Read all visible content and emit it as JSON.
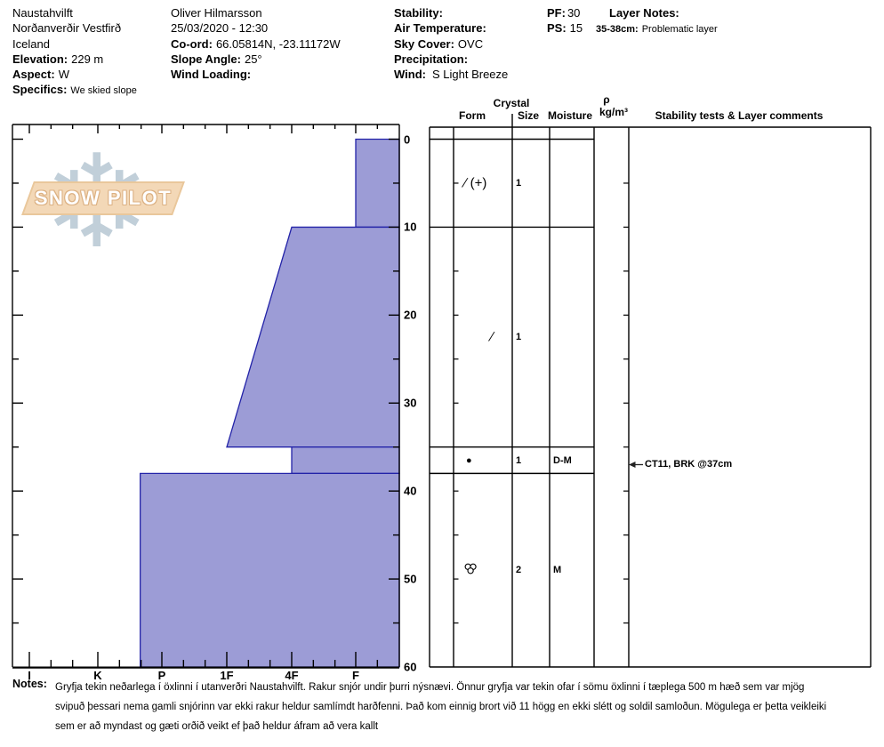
{
  "header": {
    "location_line1": "Naustahvilft",
    "location_line2": "Norðanverðir Vestfirð",
    "location_line3": "Iceland",
    "elevation_label": "Elevation:",
    "elevation_value": "229 m",
    "aspect_label": "Aspect:",
    "aspect_value": "W",
    "specifics_label": "Specifics:",
    "specifics_value": "We skied slope",
    "observer": "Oliver Hilmarsson",
    "datetime": "25/03/2020 - 12:30",
    "coord_label": "Co-ord:",
    "coord_value": "66.05814N, -23.11172W",
    "slope_label": "Slope Angle:",
    "slope_value": "25°",
    "windloading_label": "Wind Loading:",
    "windloading_value": "",
    "stability_label": "Stability:",
    "stability_value": "",
    "airtemp_label": "Air Temperature:",
    "airtemp_value": "",
    "skycover_label": "Sky Cover:",
    "skycover_value": "OVC",
    "precip_label": "Precipitation:",
    "precip_value": "",
    "wind_label": "Wind:",
    "wind_value": "S Light Breeze",
    "pf_label": "PF:",
    "pf_value": "30",
    "ps_label": "PS:",
    "ps_value": "15",
    "layernotes_label": "Layer Notes:",
    "layernote_range": "35-38cm:",
    "layernote_text": "Problematic layer"
  },
  "logo": {
    "text": "SNOW PILOT",
    "snowflake_icon": "❄"
  },
  "table_headers": {
    "crystal": "Crystal",
    "form": "Form",
    "size": "Size",
    "moisture": "Moisture",
    "rho": "ρ",
    "rho_units": "kg/m³",
    "comments": "Stability tests & Layer comments"
  },
  "chart_data": {
    "type": "area",
    "description": "Snow pit hardness profile: depth (cm, 0 at surface) vs hand hardness; harder snow extends further left",
    "hardness_axis": {
      "categories": [
        "I",
        "K",
        "P",
        "1F",
        "4F",
        "F"
      ],
      "harder_side": "left"
    },
    "depth_axis": {
      "unit": "cm",
      "min": 0,
      "max": 60,
      "ticks": [
        0,
        10,
        20,
        30,
        40,
        50,
        60
      ]
    },
    "layers": [
      {
        "top_cm": 0,
        "bottom_cm": 10,
        "hardness_top": "F",
        "hardness_bottom": "F",
        "grain_form_glyph": "∕ (+)",
        "grain_form_icon": "",
        "grain_size_mm": "1",
        "moisture": ""
      },
      {
        "top_cm": 10,
        "bottom_cm": 35,
        "hardness_top": "4F",
        "hardness_bottom": "1F",
        "grain_form_glyph": "∕",
        "grain_form_icon": "",
        "grain_size_mm": "1",
        "moisture": ""
      },
      {
        "top_cm": 35,
        "bottom_cm": 38,
        "hardness_top": "4F",
        "hardness_bottom": "4F",
        "grain_form_glyph": "●",
        "grain_form_icon": "",
        "grain_size_mm": "1",
        "moisture": "D-M"
      },
      {
        "top_cm": 38,
        "bottom_cm": 60,
        "hardness_top": "P+",
        "hardness_bottom": "P+",
        "grain_form_glyph": "",
        "grain_form_icon": "melt-cluster-icon",
        "grain_size_mm": "2",
        "moisture": "M"
      }
    ],
    "annotations": [
      {
        "depth_cm": 37,
        "text": "CT11, BRK @37cm"
      }
    ],
    "colors": {
      "layer_fill": "#9c9cd6",
      "layer_stroke": "#2323a8",
      "axis": "#000000"
    }
  },
  "icons": {
    "arrow_left": "←"
  },
  "notes": {
    "label": "Notes:",
    "lines": [
      "Gryfja tekin neðarlega í öxlinni í utanverðri Naustahvilft. Rakur snjór undir þurri nýsnævi. Önnur gryfja var tekin ofar í sömu öxlinni í tæplega 500 m hæð sem var mjög",
      "svipuð þessari nema gamli snjórinn var ekki rakur heldur samlímdt harðfenni. Það kom einnig brort við 11 högg en ekki slétt og soldil samloðun. Mögulega er þetta veikleiki",
      "sem er að myndast og gæti orðið veikt ef það heldur áfram að vera kallt"
    ]
  }
}
